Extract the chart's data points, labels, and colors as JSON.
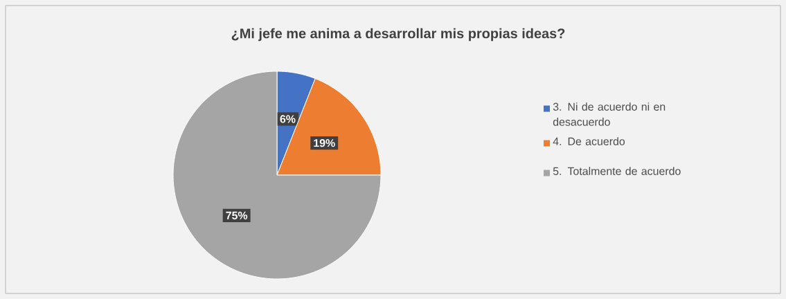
{
  "chart_data": {
    "type": "pie",
    "title": "¿Mi jefe me anima a desarrollar mis propias ideas?",
    "categories": [
      "3. Ni de acuerdo ni en desacuerdo",
      "4. De acuerdo",
      "5. Totalmente de acuerdo"
    ],
    "values": [
      6,
      19,
      75
    ],
    "colors": [
      "#4472c4",
      "#ed7d31",
      "#a5a5a5"
    ],
    "value_labels": [
      "6%",
      "19%",
      "75%"
    ],
    "legend": "right"
  }
}
